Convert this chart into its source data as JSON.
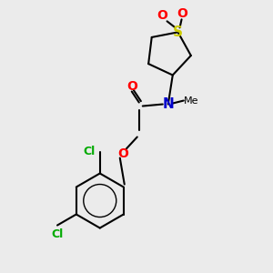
{
  "bg_color": "#ebebeb",
  "bond_color": "#000000",
  "bond_width": 1.5,
  "atom_colors": {
    "S": "#cccc00",
    "O": "#ff0000",
    "N": "#0000cc",
    "Cl": "#00aa00",
    "C": "#000000"
  },
  "font_size_atom": 9,
  "figsize": [
    3.0,
    3.0
  ],
  "dpi": 100
}
